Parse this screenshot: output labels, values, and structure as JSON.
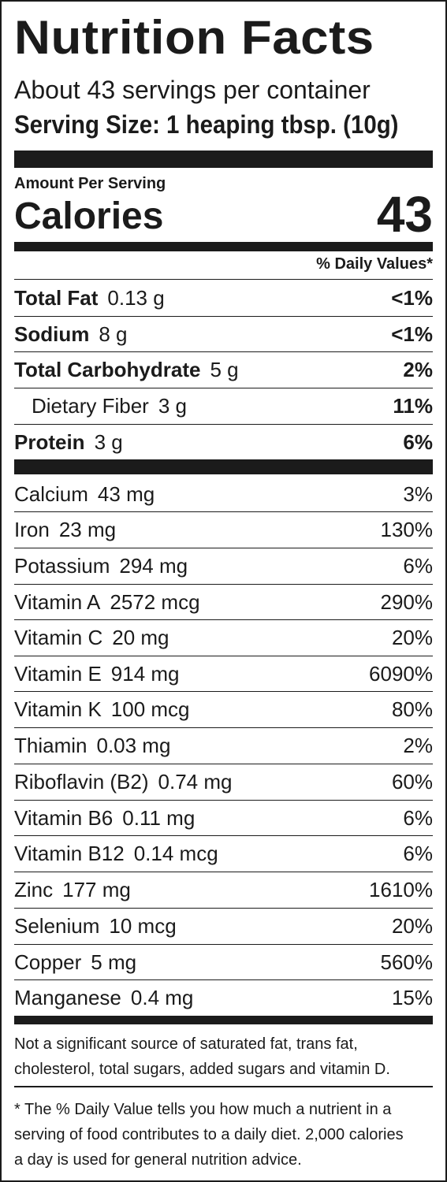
{
  "title": "Nutrition Facts",
  "servings_per_container": "About 43 servings per container",
  "serving_size": "Serving Size: 1 heaping tbsp. (10g)",
  "amount_per_serving": "Amount Per Serving",
  "calories_label": "Calories",
  "calories_value": "43",
  "daily_values_header": "% Daily Values*",
  "macros": [
    {
      "name": "Total Fat",
      "amount": "0.13 g",
      "dv": "<1%"
    },
    {
      "name": "Sodium",
      "amount": "8 g",
      "dv": "<1%"
    },
    {
      "name": "Total Carbohydrate",
      "amount": "5 g",
      "dv": "2%"
    },
    {
      "name": "Dietary Fiber",
      "amount": "3 g",
      "dv": "11%"
    },
    {
      "name": "Protein",
      "amount": "3 g",
      "dv": "6%"
    }
  ],
  "micros": [
    {
      "name": "Calcium",
      "amount": "43 mg",
      "dv": "3%"
    },
    {
      "name": "Iron",
      "amount": "23 mg",
      "dv": "130%"
    },
    {
      "name": "Potassium",
      "amount": "294 mg",
      "dv": "6%"
    },
    {
      "name": "Vitamin A",
      "amount": "2572 mcg",
      "dv": "290%"
    },
    {
      "name": "Vitamin C",
      "amount": "20 mg",
      "dv": "20%"
    },
    {
      "name": "Vitamin E",
      "amount": "914 mg",
      "dv": "6090%"
    },
    {
      "name": "Vitamin K",
      "amount": "100 mcg",
      "dv": "80%"
    },
    {
      "name": "Thiamin",
      "amount": "0.03 mg",
      "dv": "2%"
    },
    {
      "name": "Riboflavin (B2)",
      "amount": "0.74 mg",
      "dv": "60%"
    },
    {
      "name": "Vitamin B6",
      "amount": "0.11 mg",
      "dv": "6%"
    },
    {
      "name": "Vitamin B12",
      "amount": "0.14 mcg",
      "dv": "6%"
    },
    {
      "name": "Zinc",
      "amount": "177 mg",
      "dv": "1610%"
    },
    {
      "name": "Selenium",
      "amount": "10 mcg",
      "dv": "20%"
    },
    {
      "name": "Copper",
      "amount": "5 mg",
      "dv": "560%"
    },
    {
      "name": "Manganese",
      "amount": "0.4 mg",
      "dv": "15%"
    }
  ],
  "footnote_1_line_1": "Not a significant source of saturated fat, trans fat,",
  "footnote_1_line_2": "cholesterol, total sugars, added sugars and vitamin D.",
  "footnote_2_line_1": "* The % Daily Value tells you how much a nutrient in a",
  "footnote_2_line_2": "serving of food contributes to a daily diet. 2,000 calories",
  "footnote_2_line_3": "a day is used for general nutrition advice."
}
